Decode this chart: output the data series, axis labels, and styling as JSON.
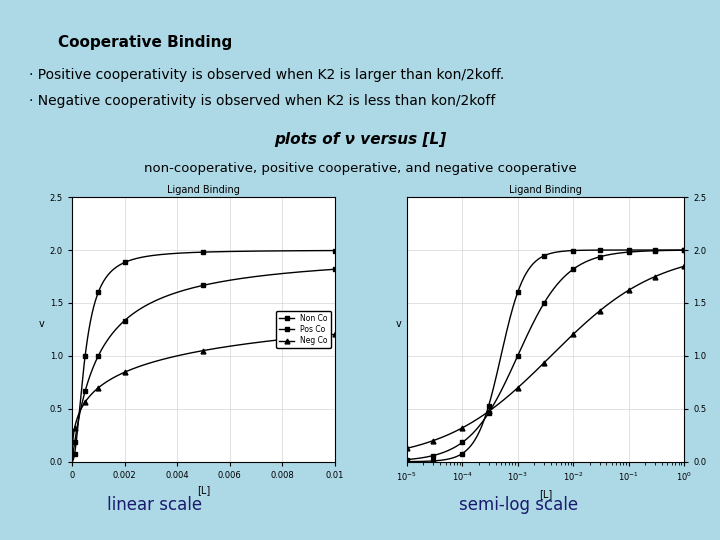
{
  "bg_color": "#add8e6",
  "title": "Cooperative Binding",
  "bullet1": "· Positive cooperativity is observed when K2 is larger than kon/2koff.",
  "bullet2": "· Negative cooperativity is observed when K2 is less than kon/2koff",
  "plots_title": "plots of ν versus [L]",
  "subtext": "non-cooperative, positive cooperative, and negative cooperative",
  "label_linear": "linear scale",
  "label_log": "semi-log scale",
  "chart_title": "Ligand Binding",
  "ylabel": "v",
  "xlabel": "[L]",
  "legend_labels": [
    "Non Co",
    "Pos Co",
    "Neg Co"
  ],
  "text_color_dark": "#1a1a6e",
  "Vmax": 2.0,
  "Kd_nonco": 0.001,
  "n_nonco": 1.0,
  "Kd_posco": 0.0005,
  "n_posco": 2.0,
  "Kd_negco": 0.004,
  "n_negco": 0.45
}
